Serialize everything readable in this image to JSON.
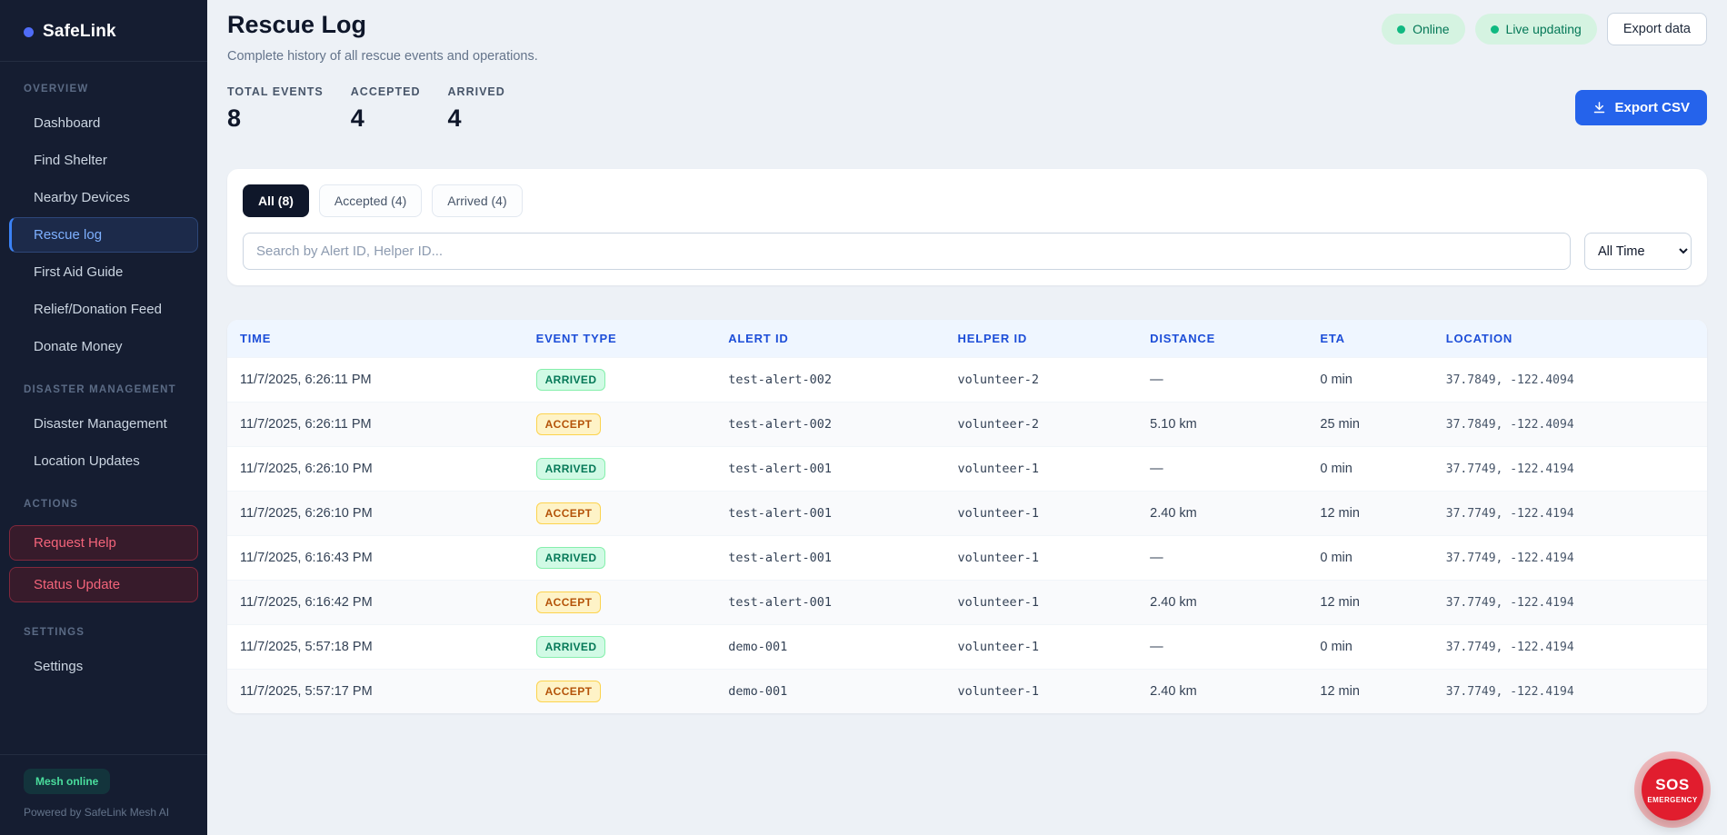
{
  "app": {
    "name": "SafeLink"
  },
  "colors": {
    "sidebar_bg": "#151d31",
    "accent_blue": "#2563eb",
    "active_nav_blue": "#3b82f6",
    "success_green": "#10b981",
    "danger_red": "#e11d2e",
    "warning_amber": "#f59e0b",
    "table_header_blue": "#1d4ed8"
  },
  "sidebar": {
    "sections": [
      {
        "label": "OVERVIEW",
        "items": [
          {
            "label": "Dashboard"
          },
          {
            "label": "Find Shelter"
          },
          {
            "label": "Nearby Devices"
          },
          {
            "label": "Rescue log",
            "active": true
          },
          {
            "label": "First Aid Guide"
          },
          {
            "label": "Relief/Donation Feed"
          },
          {
            "label": "Donate Money"
          }
        ]
      },
      {
        "label": "DISASTER MANAGEMENT",
        "items": [
          {
            "label": "Disaster Management"
          },
          {
            "label": "Location Updates"
          }
        ]
      },
      {
        "label": "ACTIONS",
        "items": [
          {
            "label": "Request Help",
            "variant": "danger"
          },
          {
            "label": "Status Update",
            "variant": "danger"
          }
        ]
      },
      {
        "label": "SETTINGS",
        "items": [
          {
            "label": "Settings"
          }
        ]
      }
    ],
    "mesh_status": "Mesh online",
    "footer": "Powered by SafeLink Mesh AI"
  },
  "header": {
    "title": "Rescue Log",
    "subtitle": "Complete history of all rescue events and operations.",
    "badges": [
      {
        "label": "Online"
      },
      {
        "label": "Live updating"
      }
    ],
    "export_data_label": "Export data"
  },
  "stats": [
    {
      "label": "TOTAL EVENTS",
      "value": "8"
    },
    {
      "label": "ACCEPTED",
      "value": "4"
    },
    {
      "label": "ARRIVED",
      "value": "4"
    }
  ],
  "toolbar": {
    "export_csv_label": "Export CSV"
  },
  "filters": {
    "tabs": [
      {
        "label": "All (8)",
        "active": true
      },
      {
        "label": "Accepted (4)"
      },
      {
        "label": "Arrived (4)"
      }
    ],
    "search_placeholder": "Search by Alert ID, Helper ID...",
    "time_filter": "All Time"
  },
  "table": {
    "columns": [
      "TIME",
      "EVENT TYPE",
      "ALERT ID",
      "HELPER ID",
      "DISTANCE",
      "ETA",
      "LOCATION"
    ],
    "rows": [
      {
        "time": "11/7/2025, 6:26:11 PM",
        "event": "ARRIVED",
        "alert_id": "test-alert-002",
        "helper_id": "volunteer-2",
        "distance": "—",
        "eta": "0 min",
        "location": "37.7849, -122.4094"
      },
      {
        "time": "11/7/2025, 6:26:11 PM",
        "event": "ACCEPT",
        "alert_id": "test-alert-002",
        "helper_id": "volunteer-2",
        "distance": "5.10 km",
        "eta": "25 min",
        "location": "37.7849, -122.4094"
      },
      {
        "time": "11/7/2025, 6:26:10 PM",
        "event": "ARRIVED",
        "alert_id": "test-alert-001",
        "helper_id": "volunteer-1",
        "distance": "—",
        "eta": "0 min",
        "location": "37.7749, -122.4194"
      },
      {
        "time": "11/7/2025, 6:26:10 PM",
        "event": "ACCEPT",
        "alert_id": "test-alert-001",
        "helper_id": "volunteer-1",
        "distance": "2.40 km",
        "eta": "12 min",
        "location": "37.7749, -122.4194"
      },
      {
        "time": "11/7/2025, 6:16:43 PM",
        "event": "ARRIVED",
        "alert_id": "test-alert-001",
        "helper_id": "volunteer-1",
        "distance": "—",
        "eta": "0 min",
        "location": "37.7749, -122.4194"
      },
      {
        "time": "11/7/2025, 6:16:42 PM",
        "event": "ACCEPT",
        "alert_id": "test-alert-001",
        "helper_id": "volunteer-1",
        "distance": "2.40 km",
        "eta": "12 min",
        "location": "37.7749, -122.4194"
      },
      {
        "time": "11/7/2025, 5:57:18 PM",
        "event": "ARRIVED",
        "alert_id": "demo-001",
        "helper_id": "volunteer-1",
        "distance": "—",
        "eta": "0 min",
        "location": "37.7749, -122.4194"
      },
      {
        "time": "11/7/2025, 5:57:17 PM",
        "event": "ACCEPT",
        "alert_id": "demo-001",
        "helper_id": "volunteer-1",
        "distance": "2.40 km",
        "eta": "12 min",
        "location": "37.7749, -122.4194"
      }
    ]
  },
  "sos": {
    "line1": "SOS",
    "line2": "EMERGENCY"
  }
}
